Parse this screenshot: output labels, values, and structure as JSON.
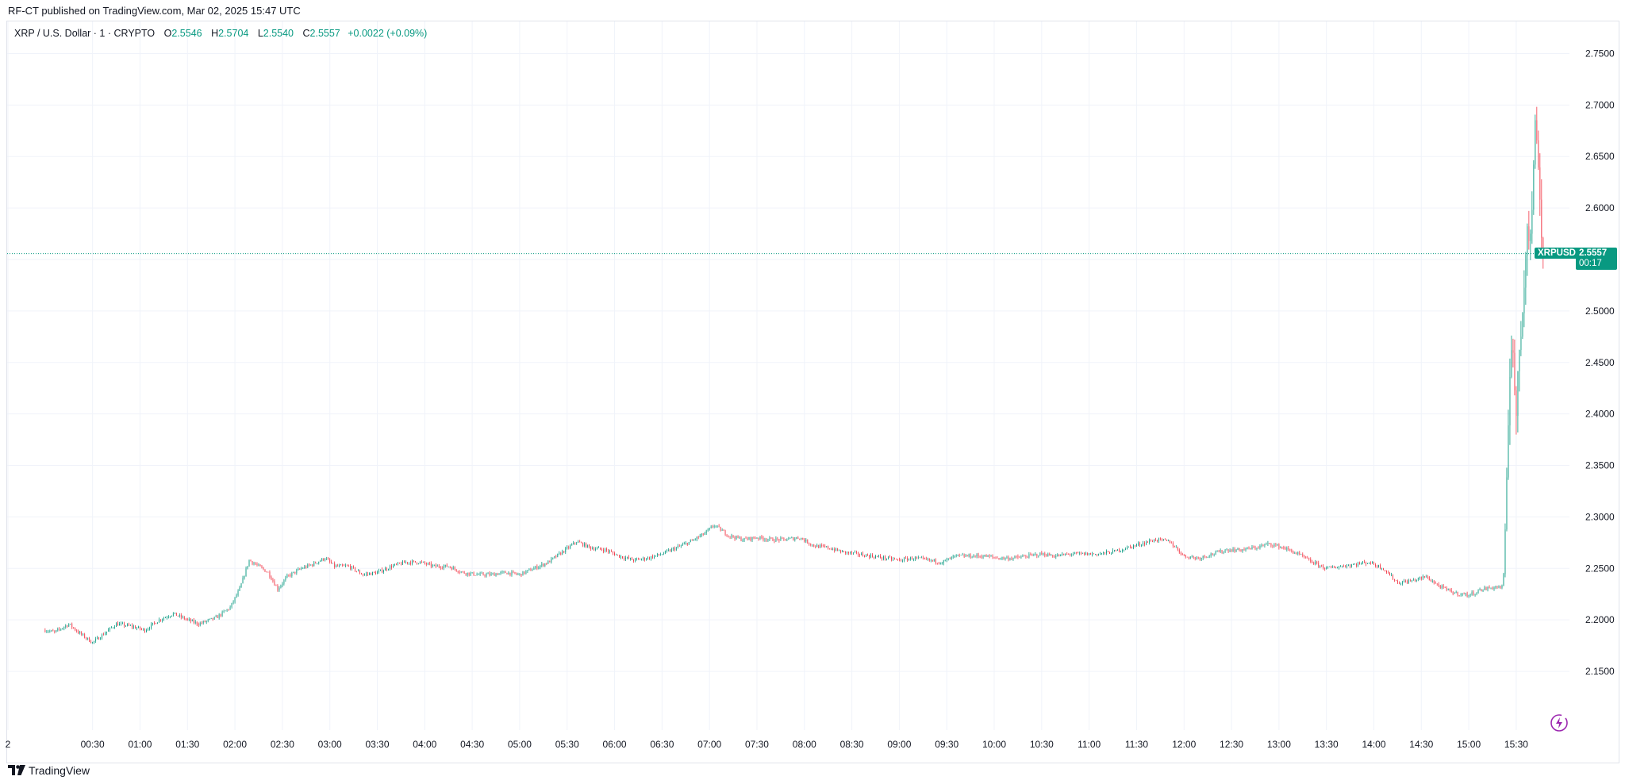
{
  "header": {
    "published": "RF-CT published on TradingView.com, Mar 02, 2025 15:47 UTC"
  },
  "legend": {
    "symbol": "XRP / U.S. Dollar · 1 · CRYPTO",
    "o_label": "O",
    "o": "2.5546",
    "h_label": "H",
    "h": "2.5704",
    "l_label": "L",
    "l": "2.5540",
    "c_label": "C",
    "c": "2.5557",
    "change": "+0.0022 (+0.09%)"
  },
  "price_tag": {
    "symbol": "XRPUSD",
    "price": "2.5557",
    "countdown": "00:17"
  },
  "footer": {
    "brand": "TradingView"
  },
  "colors": {
    "up": "#089981",
    "down": "#f23645",
    "grid": "#f0f3fa",
    "price_line": "#089981"
  },
  "icons": {
    "logo": "tradingview-logo-icon",
    "bolt": "lightning-bolt-icon"
  },
  "chart_data": {
    "type": "candlestick",
    "interval": "1 minute",
    "x_ticks": [
      "2",
      "00:30",
      "01:00",
      "01:30",
      "02:00",
      "02:30",
      "03:00",
      "03:30",
      "04:00",
      "04:30",
      "05:00",
      "05:30",
      "06:00",
      "06:30",
      "07:00",
      "07:30",
      "08:00",
      "08:30",
      "09:00",
      "09:30",
      "10:00",
      "10:30",
      "11:00",
      "11:30",
      "12:00",
      "12:30",
      "13:00",
      "13:30",
      "14:00",
      "14:30",
      "15:00",
      "15:30"
    ],
    "y_ticks": [
      "2.1500",
      "2.2000",
      "2.2500",
      "2.3000",
      "2.3500",
      "2.4000",
      "2.4500",
      "2.5000",
      "2.5500",
      "2.6000",
      "2.6500",
      "2.7000",
      "2.7500"
    ],
    "ylim": [
      2.12,
      2.765
    ],
    "x_range_hours": [
      0,
      15.79
    ],
    "last_price": 2.5557,
    "price_path": [
      [
        0.0,
        2.19
      ],
      [
        0.1,
        2.188
      ],
      [
        0.25,
        2.196
      ],
      [
        0.35,
        2.188
      ],
      [
        0.5,
        2.178
      ],
      [
        0.6,
        2.185
      ],
      [
        0.75,
        2.196
      ],
      [
        0.9,
        2.194
      ],
      [
        1.05,
        2.19
      ],
      [
        1.2,
        2.2
      ],
      [
        1.35,
        2.206
      ],
      [
        1.5,
        2.2
      ],
      [
        1.62,
        2.196
      ],
      [
        1.8,
        2.202
      ],
      [
        1.95,
        2.212
      ],
      [
        2.05,
        2.23
      ],
      [
        2.15,
        2.258
      ],
      [
        2.25,
        2.252
      ],
      [
        2.35,
        2.246
      ],
      [
        2.45,
        2.23
      ],
      [
        2.55,
        2.242
      ],
      [
        2.7,
        2.25
      ],
      [
        2.82,
        2.254
      ],
      [
        2.95,
        2.26
      ],
      [
        3.05,
        2.252
      ],
      [
        3.2,
        2.252
      ],
      [
        3.35,
        2.244
      ],
      [
        3.5,
        2.246
      ],
      [
        3.65,
        2.252
      ],
      [
        3.8,
        2.256
      ],
      [
        3.95,
        2.256
      ],
      [
        4.1,
        2.252
      ],
      [
        4.25,
        2.252
      ],
      [
        4.4,
        2.246
      ],
      [
        4.55,
        2.244
      ],
      [
        4.7,
        2.244
      ],
      [
        4.85,
        2.246
      ],
      [
        5.0,
        2.244
      ],
      [
        5.15,
        2.25
      ],
      [
        5.3,
        2.256
      ],
      [
        5.45,
        2.266
      ],
      [
        5.6,
        2.276
      ],
      [
        5.75,
        2.27
      ],
      [
        5.9,
        2.268
      ],
      [
        6.05,
        2.262
      ],
      [
        6.2,
        2.258
      ],
      [
        6.35,
        2.26
      ],
      [
        6.5,
        2.264
      ],
      [
        6.65,
        2.27
      ],
      [
        6.8,
        2.276
      ],
      [
        6.95,
        2.284
      ],
      [
        7.05,
        2.292
      ],
      [
        7.2,
        2.282
      ],
      [
        7.35,
        2.278
      ],
      [
        7.5,
        2.28
      ],
      [
        7.65,
        2.278
      ],
      [
        7.8,
        2.278
      ],
      [
        7.95,
        2.28
      ],
      [
        8.1,
        2.272
      ],
      [
        8.25,
        2.27
      ],
      [
        8.4,
        2.266
      ],
      [
        8.55,
        2.264
      ],
      [
        8.7,
        2.262
      ],
      [
        8.85,
        2.26
      ],
      [
        9.0,
        2.258
      ],
      [
        9.15,
        2.26
      ],
      [
        9.3,
        2.258
      ],
      [
        9.45,
        2.256
      ],
      [
        9.6,
        2.262
      ],
      [
        9.75,
        2.262
      ],
      [
        9.9,
        2.262
      ],
      [
        10.05,
        2.26
      ],
      [
        10.2,
        2.26
      ],
      [
        10.35,
        2.262
      ],
      [
        10.5,
        2.264
      ],
      [
        10.65,
        2.262
      ],
      [
        10.8,
        2.264
      ],
      [
        10.95,
        2.264
      ],
      [
        11.1,
        2.264
      ],
      [
        11.25,
        2.266
      ],
      [
        11.4,
        2.27
      ],
      [
        11.55,
        2.274
      ],
      [
        11.7,
        2.278
      ],
      [
        11.85,
        2.276
      ],
      [
        12.0,
        2.262
      ],
      [
        12.15,
        2.26
      ],
      [
        12.3,
        2.264
      ],
      [
        12.45,
        2.268
      ],
      [
        12.6,
        2.268
      ],
      [
        12.75,
        2.27
      ],
      [
        12.9,
        2.274
      ],
      [
        13.05,
        2.27
      ],
      [
        13.2,
        2.264
      ],
      [
        13.35,
        2.256
      ],
      [
        13.5,
        2.25
      ],
      [
        13.65,
        2.252
      ],
      [
        13.8,
        2.254
      ],
      [
        13.95,
        2.256
      ],
      [
        14.1,
        2.25
      ],
      [
        14.25,
        2.236
      ],
      [
        14.4,
        2.238
      ],
      [
        14.55,
        2.242
      ],
      [
        14.7,
        2.232
      ],
      [
        14.85,
        2.226
      ],
      [
        15.0,
        2.224
      ],
      [
        15.15,
        2.23
      ],
      [
        15.3,
        2.232
      ],
      [
        15.36,
        2.232
      ],
      [
        15.38,
        2.27
      ],
      [
        15.4,
        2.33
      ],
      [
        15.42,
        2.4
      ],
      [
        15.44,
        2.46
      ],
      [
        15.46,
        2.48
      ],
      [
        15.48,
        2.43
      ],
      [
        15.5,
        2.395
      ],
      [
        15.52,
        2.44
      ],
      [
        15.54,
        2.47
      ],
      [
        15.56,
        2.49
      ],
      [
        15.58,
        2.52
      ],
      [
        15.6,
        2.56
      ],
      [
        15.62,
        2.595
      ],
      [
        15.64,
        2.56
      ],
      [
        15.66,
        2.58
      ],
      [
        15.68,
        2.64
      ],
      [
        15.7,
        2.68
      ],
      [
        15.72,
        2.66
      ],
      [
        15.74,
        2.64
      ],
      [
        15.76,
        2.58
      ],
      [
        15.78,
        2.556
      ]
    ]
  }
}
